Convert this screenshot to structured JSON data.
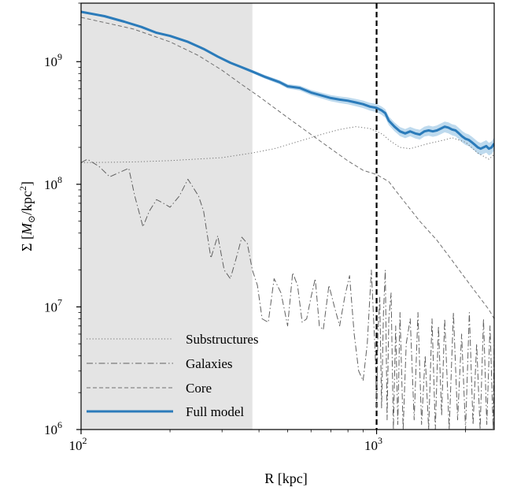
{
  "chart_data": {
    "type": "line",
    "title": "",
    "xlabel": "R [kpc]",
    "ylabel_parts": {
      "sigma": "Σ",
      "unit_prefix": "[",
      "m": "M",
      "sun": "⊙",
      "unit_mid": "/kpc",
      "exp": "2",
      "unit_suffix": "]"
    },
    "xscale": "log",
    "yscale": "log",
    "xlim": [
      100,
      2500
    ],
    "ylim": [
      1000000,
      3000000000
    ],
    "x_ticks": [
      {
        "value": 100,
        "base": "10",
        "exp": "2"
      },
      {
        "value": 1000,
        "base": "10",
        "exp": "3"
      }
    ],
    "y_ticks": [
      {
        "value": 1000000,
        "base": "10",
        "exp": "6"
      },
      {
        "value": 10000000,
        "base": "10",
        "exp": "7"
      },
      {
        "value": 100000000,
        "base": "10",
        "exp": "8"
      },
      {
        "value": 1000000000,
        "base": "10",
        "exp": "9"
      }
    ],
    "shaded_region": {
      "x": [
        100,
        380
      ],
      "color": "#e4e4e4"
    },
    "vertical_line": {
      "x": 1000,
      "style": "dashed",
      "color": "#000000"
    },
    "legend_position": "lower left",
    "series": [
      {
        "name": "Substructures",
        "style": "dotted",
        "color": "#707070",
        "x": [
          100,
          150,
          200,
          300,
          380,
          450,
          550,
          650,
          750,
          850,
          950,
          1000,
          1050,
          1100,
          1200,
          1300,
          1500,
          1700,
          1800,
          2000,
          2200,
          2400,
          2500
        ],
        "y": [
          150000000.0,
          152000000.0,
          156000000.0,
          165000000.0,
          180000000.0,
          195000000.0,
          225000000.0,
          255000000.0,
          280000000.0,
          295000000.0,
          285000000.0,
          270000000.0,
          255000000.0,
          230000000.0,
          200000000.0,
          195000000.0,
          215000000.0,
          230000000.0,
          240000000.0,
          220000000.0,
          180000000.0,
          160000000.0,
          175000000.0
        ]
      },
      {
        "name": "Galaxies",
        "style": "dashdot",
        "color": "#606060",
        "x": [
          100,
          105,
          115,
          125,
          135,
          145,
          152,
          162,
          170,
          180,
          190,
          200,
          215,
          230,
          250,
          260,
          275,
          290,
          305,
          320,
          335,
          350,
          365,
          380,
          395,
          410,
          430,
          450,
          475,
          500,
          520,
          540,
          560,
          580,
          600,
          620,
          640,
          660,
          690,
          720,
          750,
          780,
          810,
          840,
          870,
          900,
          930,
          960,
          990,
          1000,
          1010,
          1025,
          1040,
          1055,
          1070,
          1085,
          1100,
          1120,
          1140,
          1160,
          1180,
          1200,
          1230,
          1260,
          1300,
          1340,
          1380,
          1420,
          1460,
          1500,
          1540,
          1580,
          1620,
          1660,
          1700,
          1760,
          1820,
          1880,
          1940,
          2000,
          2060,
          2120,
          2180,
          2240,
          2300,
          2360,
          2420,
          2480,
          2500
        ],
        "y": [
          150000000.0,
          160000000.0,
          140000000.0,
          115000000.0,
          125000000.0,
          135000000.0,
          80000000.0,
          45000000.0,
          60000000.0,
          75000000.0,
          70000000.0,
          65000000.0,
          80000000.0,
          110000000.0,
          80000000.0,
          60000000.0,
          25000000.0,
          38000000.0,
          20000000.0,
          17000000.0,
          25000000.0,
          37000000.0,
          33000000.0,
          20000000.0,
          15000000.0,
          8000000.0,
          7500000.0,
          17000000.0,
          13000000.0,
          7000000.0,
          19000000.0,
          15000000.0,
          7500000.0,
          8000000.0,
          12000000.0,
          17000000.0,
          7000000.0,
          6500000.0,
          15000000.0,
          10000000.0,
          7000000.0,
          12000000.0,
          18000000.0,
          6000000.0,
          3000000.0,
          2500000.0,
          5000000.0,
          20000000.0,
          4000000.0,
          1500000.0,
          6000000.0,
          12000000.0,
          1500000.0,
          9000000.0,
          20000000.0,
          1200000.0,
          8000000.0,
          13000000.0,
          1000000.0,
          7000000.0,
          1100000.0,
          9000000.0,
          1000000.0,
          5000000.0,
          8000000.0,
          1200000.0,
          9000000.0,
          1100000.0,
          4000000.0,
          1000000.0,
          8000000.0,
          1000000.0,
          7000000.0,
          1300000.0,
          8000000.0,
          1000000.0,
          9000000.0,
          1200000.0,
          6000000.0,
          1000000.0,
          9000000.0,
          1100000.0,
          5000000.0,
          1000000.0,
          8000000.0,
          1100000.0,
          7000000.0,
          1000000.0,
          6000000.0
        ]
      },
      {
        "name": "Core",
        "style": "dashed",
        "color": "#707070",
        "x": [
          100,
          150,
          200,
          250,
          300,
          350,
          400,
          500,
          600,
          700,
          800,
          900,
          1000,
          1100,
          1200,
          1400,
          1600,
          1800,
          2000,
          2200,
          2400,
          2500
        ],
        "y": [
          2300000000.0,
          1850000000.0,
          1450000000.0,
          1120000000.0,
          850000000.0,
          650000000.0,
          520000000.0,
          350000000.0,
          255000000.0,
          195000000.0,
          155000000.0,
          130000000.0,
          120000000.0,
          105000000.0,
          80000000.0,
          50000000.0,
          35000000.0,
          24000000.0,
          17000000.0,
          12500000.0,
          9500000.0,
          8000000.0
        ]
      },
      {
        "name": "Full model",
        "style": "solid",
        "color": "#2b7bba",
        "x": [
          100,
          120,
          140,
          160,
          180,
          200,
          230,
          260,
          290,
          320,
          350,
          380,
          420,
          470,
          500,
          550,
          600,
          650,
          700,
          750,
          800,
          850,
          900,
          950,
          1000,
          1040,
          1070,
          1100,
          1150,
          1200,
          1250,
          1300,
          1350,
          1400,
          1450,
          1500,
          1550,
          1600,
          1650,
          1700,
          1750,
          1800,
          1850,
          1900,
          1950,
          2000,
          2050,
          2100,
          2150,
          2200,
          2250,
          2300,
          2350,
          2400,
          2450,
          2500
        ],
        "y": [
          2550000000.0,
          2350000000.0,
          2120000000.0,
          1920000000.0,
          1720000000.0,
          1620000000.0,
          1450000000.0,
          1270000000.0,
          1100000000.0,
          980000000.0,
          900000000.0,
          830000000.0,
          750000000.0,
          680000000.0,
          630000000.0,
          610000000.0,
          560000000.0,
          530000000.0,
          505000000.0,
          490000000.0,
          480000000.0,
          465000000.0,
          450000000.0,
          430000000.0,
          420000000.0,
          400000000.0,
          380000000.0,
          330000000.0,
          295000000.0,
          270000000.0,
          260000000.0,
          270000000.0,
          260000000.0,
          255000000.0,
          270000000.0,
          275000000.0,
          270000000.0,
          275000000.0,
          285000000.0,
          295000000.0,
          290000000.0,
          280000000.0,
          275000000.0,
          260000000.0,
          245000000.0,
          235000000.0,
          230000000.0,
          220000000.0,
          210000000.0,
          200000000.0,
          195000000.0,
          200000000.0,
          205000000.0,
          195000000.0,
          200000000.0,
          215000000.0
        ]
      }
    ],
    "confidence_band": {
      "series": "Full model",
      "color": "#a8cde8",
      "rel_width": 0.1
    }
  }
}
